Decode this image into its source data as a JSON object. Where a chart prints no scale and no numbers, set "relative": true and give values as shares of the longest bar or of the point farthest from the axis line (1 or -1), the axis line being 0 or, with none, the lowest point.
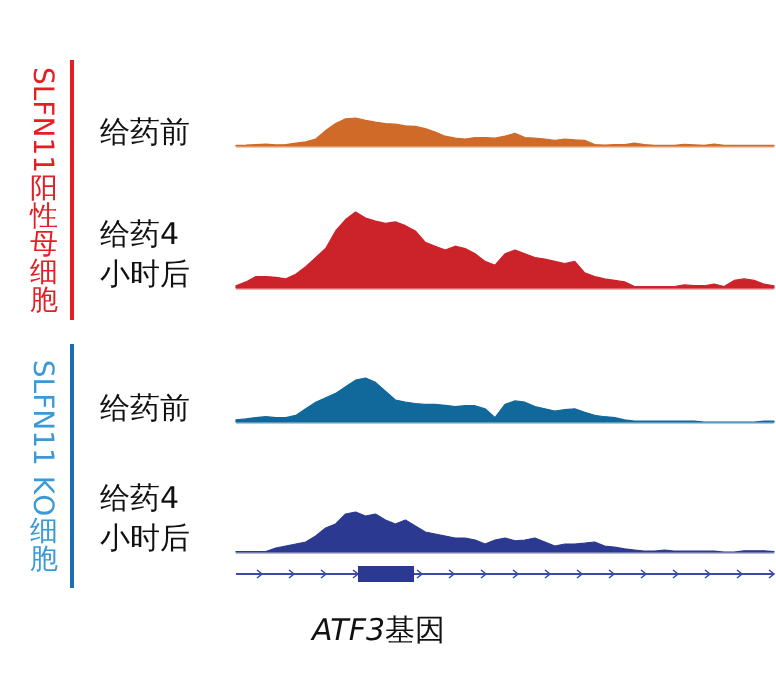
{
  "chart_data": [
    {
      "type": "area",
      "relative": true,
      "ylabel": "给药前",
      "annotations": [
        "SLFN11阳性母细胞"
      ],
      "categories": [
        null,
        null,
        null,
        null,
        null,
        null,
        null,
        null,
        null,
        null,
        null,
        null,
        null,
        null,
        null,
        null,
        null,
        null,
        null,
        null,
        null,
        null,
        null,
        null,
        null,
        null,
        null,
        null,
        null,
        null,
        null,
        null,
        null,
        null,
        null,
        null,
        null,
        null,
        null,
        null,
        null,
        null,
        null,
        null,
        null,
        null,
        null,
        null,
        null,
        null,
        null,
        null,
        null,
        null,
        null
      ],
      "series": [
        {
          "color": "#d06a28",
          "values": [
            0.02,
            0.03,
            0.05,
            0.07,
            0.04,
            0.05,
            0.1,
            0.15,
            0.25,
            0.55,
            0.8,
            0.97,
            1,
            0.92,
            0.85,
            0.8,
            0.78,
            0.72,
            0.7,
            0.62,
            0.5,
            0.35,
            0.28,
            0.25,
            0.3,
            0.3,
            0.28,
            0.35,
            0.45,
            0.3,
            0.28,
            0.25,
            0.2,
            0.25,
            0.22,
            0.2,
            0.05,
            0.03,
            0.05,
            0.05,
            0.1,
            0.05,
            0.02,
            0.02,
            0.02,
            0.06,
            0.04,
            0.02,
            0.07,
            0.02,
            0.02,
            0.02,
            0.02,
            0.02,
            0.02
          ]
        }
      ]
    },
    {
      "type": "area",
      "relative": true,
      "ylabel": "给药4小时后",
      "categories": [
        null,
        null,
        null,
        null,
        null,
        null,
        null,
        null,
        null,
        null,
        null,
        null,
        null,
        null,
        null,
        null,
        null,
        null,
        null,
        null,
        null,
        null,
        null,
        null,
        null,
        null,
        null,
        null,
        null,
        null,
        null,
        null,
        null,
        null,
        null,
        null,
        null,
        null,
        null,
        null,
        null,
        null,
        null,
        null,
        null,
        null,
        null,
        null,
        null,
        null,
        null,
        null,
        null,
        null,
        null
      ],
      "series": [
        {
          "color": "#cc2229",
          "values": [
            0.03,
            0.08,
            0.15,
            0.15,
            0.14,
            0.12,
            0.18,
            0.28,
            0.4,
            0.52,
            0.75,
            0.9,
            1,
            0.92,
            0.88,
            0.85,
            0.87,
            0.82,
            0.75,
            0.6,
            0.55,
            0.5,
            0.55,
            0.52,
            0.45,
            0.35,
            0.3,
            0.45,
            0.5,
            0.45,
            0.4,
            0.38,
            0.35,
            0.32,
            0.35,
            0.2,
            0.15,
            0.12,
            0.1,
            0.08,
            0.02,
            0.02,
            0.02,
            0.02,
            0.02,
            0.04,
            0.03,
            0.03,
            0.05,
            0.02,
            0.1,
            0.12,
            0.1,
            0.05,
            0.03
          ]
        }
      ]
    },
    {
      "type": "area",
      "relative": true,
      "ylabel": "给药前",
      "annotations": [
        "SLFN11 KO细胞"
      ],
      "categories": [
        null,
        null,
        null,
        null,
        null,
        null,
        null,
        null,
        null,
        null,
        null,
        null,
        null,
        null,
        null,
        null,
        null,
        null,
        null,
        null,
        null,
        null,
        null,
        null,
        null,
        null,
        null,
        null,
        null,
        null,
        null,
        null,
        null,
        null,
        null,
        null,
        null,
        null,
        null,
        null,
        null,
        null,
        null,
        null,
        null,
        null,
        null,
        null,
        null,
        null,
        null,
        null,
        null,
        null,
        null
      ],
      "series": [
        {
          "color": "#11689a",
          "values": [
            0.05,
            0.07,
            0.1,
            0.12,
            0.1,
            0.1,
            0.15,
            0.3,
            0.45,
            0.55,
            0.65,
            0.8,
            0.95,
            1,
            0.9,
            0.7,
            0.5,
            0.45,
            0.42,
            0.4,
            0.4,
            0.38,
            0.35,
            0.37,
            0.37,
            0.3,
            0.1,
            0.4,
            0.48,
            0.45,
            0.35,
            0.3,
            0.25,
            0.28,
            0.3,
            0.22,
            0.15,
            0.12,
            0.1,
            0.05,
            0.02,
            0.02,
            0.02,
            0.02,
            0.02,
            0.02,
            0.02,
            0,
            0,
            0,
            0,
            0,
            0,
            0.02,
            0.02
          ]
        }
      ]
    },
    {
      "type": "area",
      "relative": true,
      "ylabel": "给药4小时后",
      "xlabel": "ATF3基因",
      "categories": [
        null,
        null,
        null,
        null,
        null,
        null,
        null,
        null,
        null,
        null,
        null,
        null,
        null,
        null,
        null,
        null,
        null,
        null,
        null,
        null,
        null,
        null,
        null,
        null,
        null,
        null,
        null,
        null,
        null,
        null,
        null,
        null,
        null,
        null,
        null,
        null,
        null,
        null,
        null,
        null,
        null,
        null,
        null,
        null,
        null,
        null,
        null,
        null,
        null,
        null,
        null,
        null,
        null,
        null,
        null
      ],
      "series": [
        {
          "color": "#2b3990",
          "values": [
            0.01,
            0.01,
            0.01,
            0.01,
            0.1,
            0.15,
            0.2,
            0.25,
            0.4,
            0.6,
            0.7,
            0.95,
            1,
            0.9,
            0.95,
            0.8,
            0.7,
            0.8,
            0.65,
            0.5,
            0.45,
            0.4,
            0.35,
            0.35,
            0.3,
            0.2,
            0.3,
            0.35,
            0.28,
            0.3,
            0.35,
            0.25,
            0.15,
            0.2,
            0.2,
            0.22,
            0.25,
            0.15,
            0.12,
            0.08,
            0.05,
            0.02,
            0.02,
            0.05,
            0.02,
            0.02,
            0.02,
            0.02,
            0.02,
            0,
            0,
            0.03,
            0.03,
            0.03,
            0.01
          ]
        }
      ]
    }
  ]
}
